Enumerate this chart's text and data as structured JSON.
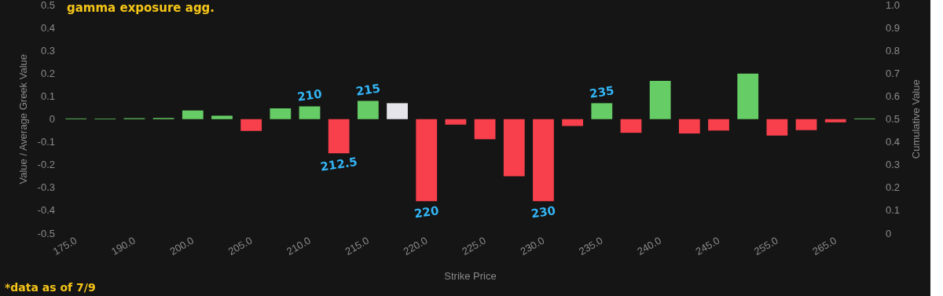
{
  "chart_data": {
    "type": "bar",
    "title": "gamma exposure agg.",
    "xlabel": "Strike Price",
    "ylabel": "Value / Average Greek Value",
    "y2label": "Cumulative Value",
    "categories": [
      "175.0",
      null,
      "190.0",
      null,
      "200.0",
      null,
      "205.0",
      null,
      "210.0",
      null,
      "215.0",
      null,
      "220.0",
      null,
      "225.0",
      null,
      "230.0",
      null,
      "235.0",
      null,
      "240.0",
      null,
      "245.0",
      null,
      "255.0",
      null,
      "265.0",
      null
    ],
    "values": [
      0.003,
      0.003,
      0.004,
      0.005,
      0.038,
      0.015,
      -0.052,
      0.047,
      0.056,
      -0.15,
      0.08,
      0.07,
      -0.36,
      -0.024,
      -0.088,
      -0.25,
      -0.36,
      -0.03,
      0.07,
      -0.06,
      0.168,
      -0.063,
      -0.05,
      0.2,
      -0.072,
      -0.048,
      -0.014,
      0.003
    ],
    "colors": [
      "#66cc66",
      "#66cc66",
      "#66cc66",
      "#66cc66",
      "#66cc66",
      "#66cc66",
      "#f7404c",
      "#66cc66",
      "#66cc66",
      "#f7404c",
      "#66cc66",
      "#e5e4ea",
      "#f7404c",
      "#f7404c",
      "#f7404c",
      "#f7404c",
      "#f7404c",
      "#f7404c",
      "#66cc66",
      "#f7404c",
      "#66cc66",
      "#f7404c",
      "#f7404c",
      "#66cc66",
      "#f7404c",
      "#f7404c",
      "#f7404c",
      "#66cc66"
    ],
    "ylim": [
      -0.5,
      0.5
    ],
    "yticks": [
      -0.5,
      -0.4,
      -0.3,
      -0.2,
      -0.1,
      0,
      0.1,
      0.2,
      0.3,
      0.4,
      0.5
    ],
    "y2lim": [
      0,
      1
    ],
    "y2ticks": [
      0,
      0.1,
      0.2,
      0.3,
      0.4,
      0.5,
      0.6,
      0.7,
      0.8,
      0.9,
      {
        "value": 1,
        "label": "1.0"
      }
    ],
    "annotations": [
      {
        "text": "210",
        "x": "210.0",
        "y": 0.056
      },
      {
        "text": "212.5",
        "y": -0.15
      },
      {
        "text": "215",
        "x": "215.0",
        "y": 0.08
      },
      {
        "text": "220",
        "x": "220.0",
        "y": -0.36
      },
      {
        "text": "230",
        "x": "230.0",
        "y": -0.36
      },
      {
        "text": "235",
        "x": "235.0",
        "y": 0.07
      },
      "*data as of 7/9"
    ],
    "grid": false
  }
}
